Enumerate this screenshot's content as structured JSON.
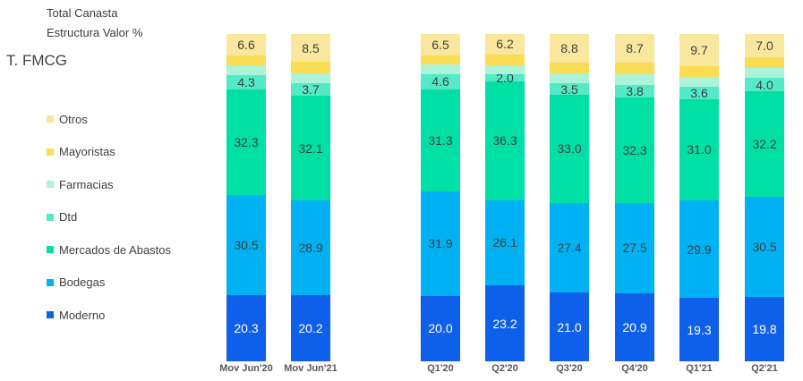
{
  "chart_data": {
    "type": "bar",
    "stacked": true,
    "title": "Total Canasta",
    "subtitle": "Estructura Valor %",
    "group_label": "T. FMCG",
    "unit": "%",
    "stack_total": 100,
    "value_range": [
      0,
      100
    ],
    "gridlines": false,
    "legend_position": "left",
    "categories": [
      "Mov Jun'20",
      "Mov Jun'21",
      "Q1'20",
      "Q2'20",
      "Q3'20",
      "Q4'20",
      "Q1'21",
      "Q2'21"
    ],
    "legend_top_to_bottom": [
      "Otros",
      "Mayoristas",
      "Farmacias",
      "Dtd",
      "Mercados de Abastos",
      "Bodegas",
      "Moderno"
    ],
    "series_bottom_to_top": [
      {
        "name": "Moderno",
        "color": "#0E5FE9",
        "label_color": "#FFFFFF",
        "labeled": true,
        "values": [
          20.3,
          20.2,
          20.0,
          23.2,
          21.0,
          20.9,
          19.3,
          19.8
        ]
      },
      {
        "name": "Bodegas",
        "color": "#00B2F4",
        "label_color": "#3F3F3F",
        "labeled": true,
        "values": [
          30.5,
          28.9,
          31.9,
          26.1,
          27.4,
          27.5,
          29.9,
          30.5
        ]
      },
      {
        "name": "Mercados de Abastos",
        "color": "#00E0A5",
        "label_color": "#3F3F3F",
        "labeled": true,
        "values": [
          32.3,
          32.1,
          31.3,
          36.3,
          33.0,
          32.3,
          31.0,
          32.2
        ]
      },
      {
        "name": "Dtd",
        "color": "#55EAC6",
        "label_color": "#3F3F3F",
        "labeled": true,
        "values": [
          4.3,
          3.7,
          4.6,
          2.0,
          3.5,
          3.8,
          3.6,
          4.0
        ]
      },
      {
        "name": "Farmacias",
        "color": "#ABF3D9",
        "label_color": "#3F3F3F",
        "labeled": false,
        "values": [
          3.0,
          3.1,
          2.9,
          2.9,
          3.0,
          3.3,
          3.0,
          3.2
        ]
      },
      {
        "name": "Mayoristas",
        "color": "#FADC55",
        "label_color": "#3F3F3F",
        "labeled": false,
        "values": [
          3.0,
          3.5,
          2.8,
          3.3,
          3.3,
          3.5,
          3.5,
          3.3
        ]
      },
      {
        "name": "Otros",
        "color": "#F8E79D",
        "label_color": "#3F3F3F",
        "labeled": true,
        "values": [
          6.6,
          8.5,
          6.5,
          6.2,
          8.8,
          8.7,
          9.7,
          7.0
        ]
      }
    ]
  }
}
